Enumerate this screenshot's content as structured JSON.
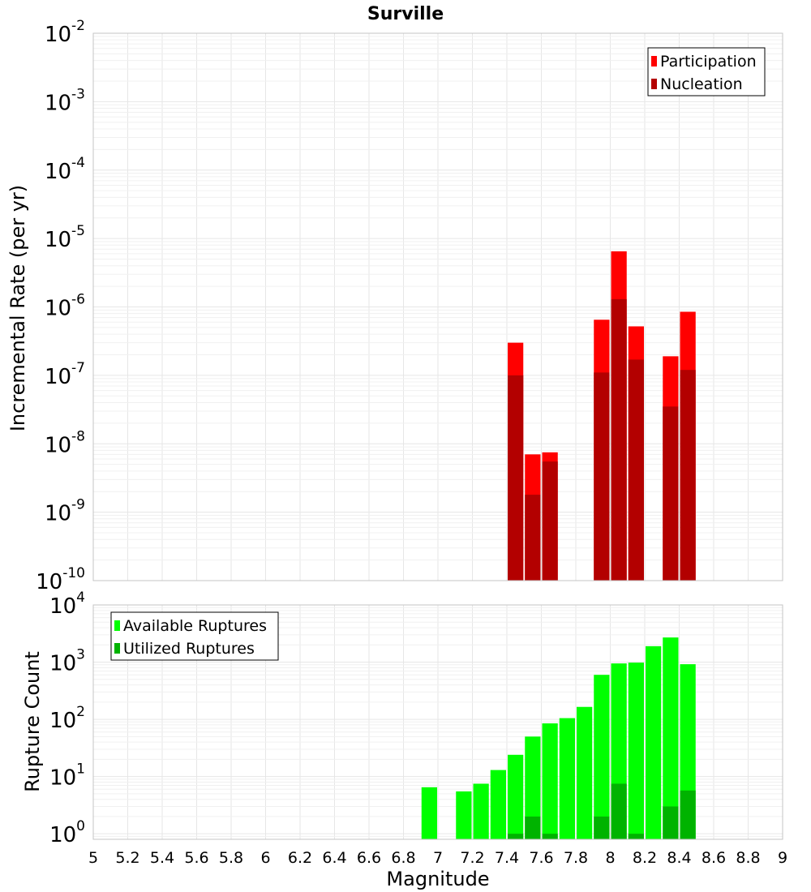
{
  "chart_data": [
    {
      "type": "bar",
      "title": "Surville",
      "ylabel": "Incremental Rate (per yr)",
      "xlabel": "",
      "yscale": "log",
      "ylim": [
        1e-10,
        0.01
      ],
      "xlim": [
        5,
        9
      ],
      "bar_width": 0.1,
      "y_tick_labels": [
        {
          "base": "10",
          "exp": "-10",
          "value": 1e-10
        },
        {
          "base": "10",
          "exp": "-9",
          "value": 1e-09
        },
        {
          "base": "10",
          "exp": "-8",
          "value": 1e-08
        },
        {
          "base": "10",
          "exp": "-7",
          "value": 1e-07
        },
        {
          "base": "10",
          "exp": "-6",
          "value": 1e-06
        },
        {
          "base": "10",
          "exp": "-5",
          "value": 1e-05
        },
        {
          "base": "10",
          "exp": "-4",
          "value": 0.0001
        },
        {
          "base": "10",
          "exp": "-3",
          "value": 0.001
        },
        {
          "base": "10",
          "exp": "-2",
          "value": 0.01
        }
      ],
      "legend": {
        "position": "top-right",
        "entries": [
          "Participation",
          "Nucleation"
        ]
      },
      "series": [
        {
          "name": "Participation",
          "color": "#ff0000",
          "x": [
            7.45,
            7.55,
            7.65,
            7.95,
            8.05,
            8.15,
            8.35,
            8.45
          ],
          "values": [
            3e-07,
            7e-09,
            7.5e-09,
            6.5e-07,
            6.5e-06,
            5.2e-07,
            1.9e-07,
            8.5e-07
          ]
        },
        {
          "name": "Nucleation",
          "color": "#b30000",
          "x": [
            7.45,
            7.55,
            7.65,
            7.95,
            8.05,
            8.15,
            8.35,
            8.45
          ],
          "values": [
            1e-07,
            1.8e-09,
            5.5e-09,
            1.1e-07,
            1.3e-06,
            1.7e-07,
            3.5e-08,
            1.2e-07
          ]
        }
      ]
    },
    {
      "type": "bar",
      "title": "",
      "ylabel": "Rupture Count",
      "xlabel": "Magnitude",
      "yscale": "log",
      "ylim": [
        0.8,
        10000.0
      ],
      "xlim": [
        5,
        9
      ],
      "bar_width": 0.1,
      "y_tick_labels": [
        {
          "base": "10",
          "exp": "0",
          "value": 1
        },
        {
          "base": "10",
          "exp": "1",
          "value": 10
        },
        {
          "base": "10",
          "exp": "2",
          "value": 100
        },
        {
          "base": "10",
          "exp": "3",
          "value": 1000
        },
        {
          "base": "10",
          "exp": "4",
          "value": 10000
        }
      ],
      "x_tick_labels": [
        "5",
        "5.2",
        "5.4",
        "5.6",
        "5.8",
        "6",
        "6.2",
        "6.4",
        "6.6",
        "6.8",
        "7",
        "7.2",
        "7.4",
        "7.6",
        "7.8",
        "8",
        "8.2",
        "8.4",
        "8.6",
        "8.8",
        "9"
      ],
      "legend": {
        "position": "top-left",
        "entries": [
          "Available Ruptures",
          "Utilized Ruptures"
        ]
      },
      "series": [
        {
          "name": "Available Ruptures",
          "color": "#00ff00",
          "x": [
            6.95,
            7.15,
            7.25,
            7.35,
            7.45,
            7.55,
            7.65,
            7.75,
            7.85,
            7.95,
            8.05,
            8.15,
            8.25,
            8.35,
            8.45
          ],
          "values": [
            6.5,
            5.5,
            7.5,
            13,
            24,
            50,
            85,
            105,
            165,
            600,
            950,
            980,
            1900,
            2700,
            920
          ]
        },
        {
          "name": "Utilized Ruptures",
          "color": "#00b300",
          "x": [
            7.45,
            7.55,
            7.65,
            7.95,
            8.05,
            8.15,
            8.35,
            8.45
          ],
          "values": [
            1,
            2,
            1,
            2,
            7.5,
            1,
            3,
            5.7
          ]
        }
      ]
    }
  ]
}
